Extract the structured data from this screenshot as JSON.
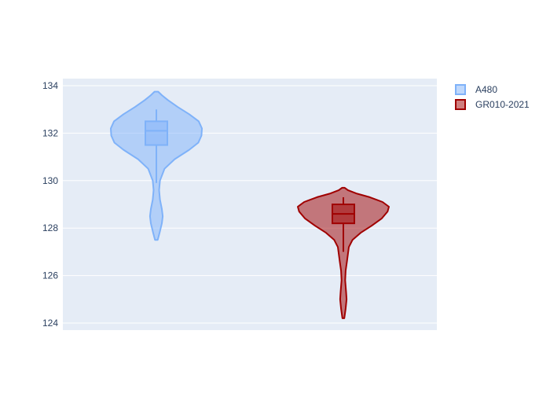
{
  "chart_data": {
    "type": "violin",
    "title": "",
    "xlabel": "",
    "ylabel": "",
    "ylim": [
      123.7,
      134.3
    ],
    "yticks": [
      124,
      126,
      128,
      130,
      132,
      134
    ],
    "grid": true,
    "legend_position": "top-right",
    "series": [
      {
        "name": "A480",
        "color": "#7fb2f9",
        "fill": "rgba(127,178,249,0.5)",
        "box": {
          "lower_whisker": 129.9,
          "q1": 131.5,
          "median": 132.1,
          "q3": 132.5,
          "upper_whisker": 133.0
        },
        "density": [
          [
            127.5,
            0.03
          ],
          [
            127.8,
            0.07
          ],
          [
            128.2,
            0.12
          ],
          [
            128.5,
            0.14
          ],
          [
            128.8,
            0.12
          ],
          [
            129.2,
            0.08
          ],
          [
            129.6,
            0.06
          ],
          [
            130.0,
            0.08
          ],
          [
            130.5,
            0.18
          ],
          [
            130.9,
            0.4
          ],
          [
            131.3,
            0.72
          ],
          [
            131.6,
            0.92
          ],
          [
            131.9,
            0.99
          ],
          [
            132.2,
            1.0
          ],
          [
            132.5,
            0.93
          ],
          [
            132.8,
            0.72
          ],
          [
            133.1,
            0.47
          ],
          [
            133.4,
            0.25
          ],
          [
            133.6,
            0.12
          ],
          [
            133.75,
            0.04
          ]
        ]
      },
      {
        "name": "GR010-2021",
        "color": "#a00000",
        "fill": "rgba(160,0,0,0.5)",
        "box": {
          "lower_whisker": 127.0,
          "q1": 128.2,
          "median": 128.6,
          "q3": 129.0,
          "upper_whisker": 129.3
        },
        "density": [
          [
            124.2,
            0.02
          ],
          [
            124.6,
            0.05
          ],
          [
            125.0,
            0.07
          ],
          [
            125.3,
            0.06
          ],
          [
            125.8,
            0.04
          ],
          [
            126.2,
            0.05
          ],
          [
            126.6,
            0.08
          ],
          [
            126.9,
            0.1
          ],
          [
            127.2,
            0.12
          ],
          [
            127.5,
            0.2
          ],
          [
            127.8,
            0.38
          ],
          [
            128.1,
            0.62
          ],
          [
            128.4,
            0.84
          ],
          [
            128.7,
            0.97
          ],
          [
            128.9,
            1.0
          ],
          [
            129.1,
            0.86
          ],
          [
            129.3,
            0.58
          ],
          [
            129.45,
            0.3
          ],
          [
            129.6,
            0.1
          ],
          [
            129.7,
            0.03
          ]
        ]
      }
    ]
  }
}
